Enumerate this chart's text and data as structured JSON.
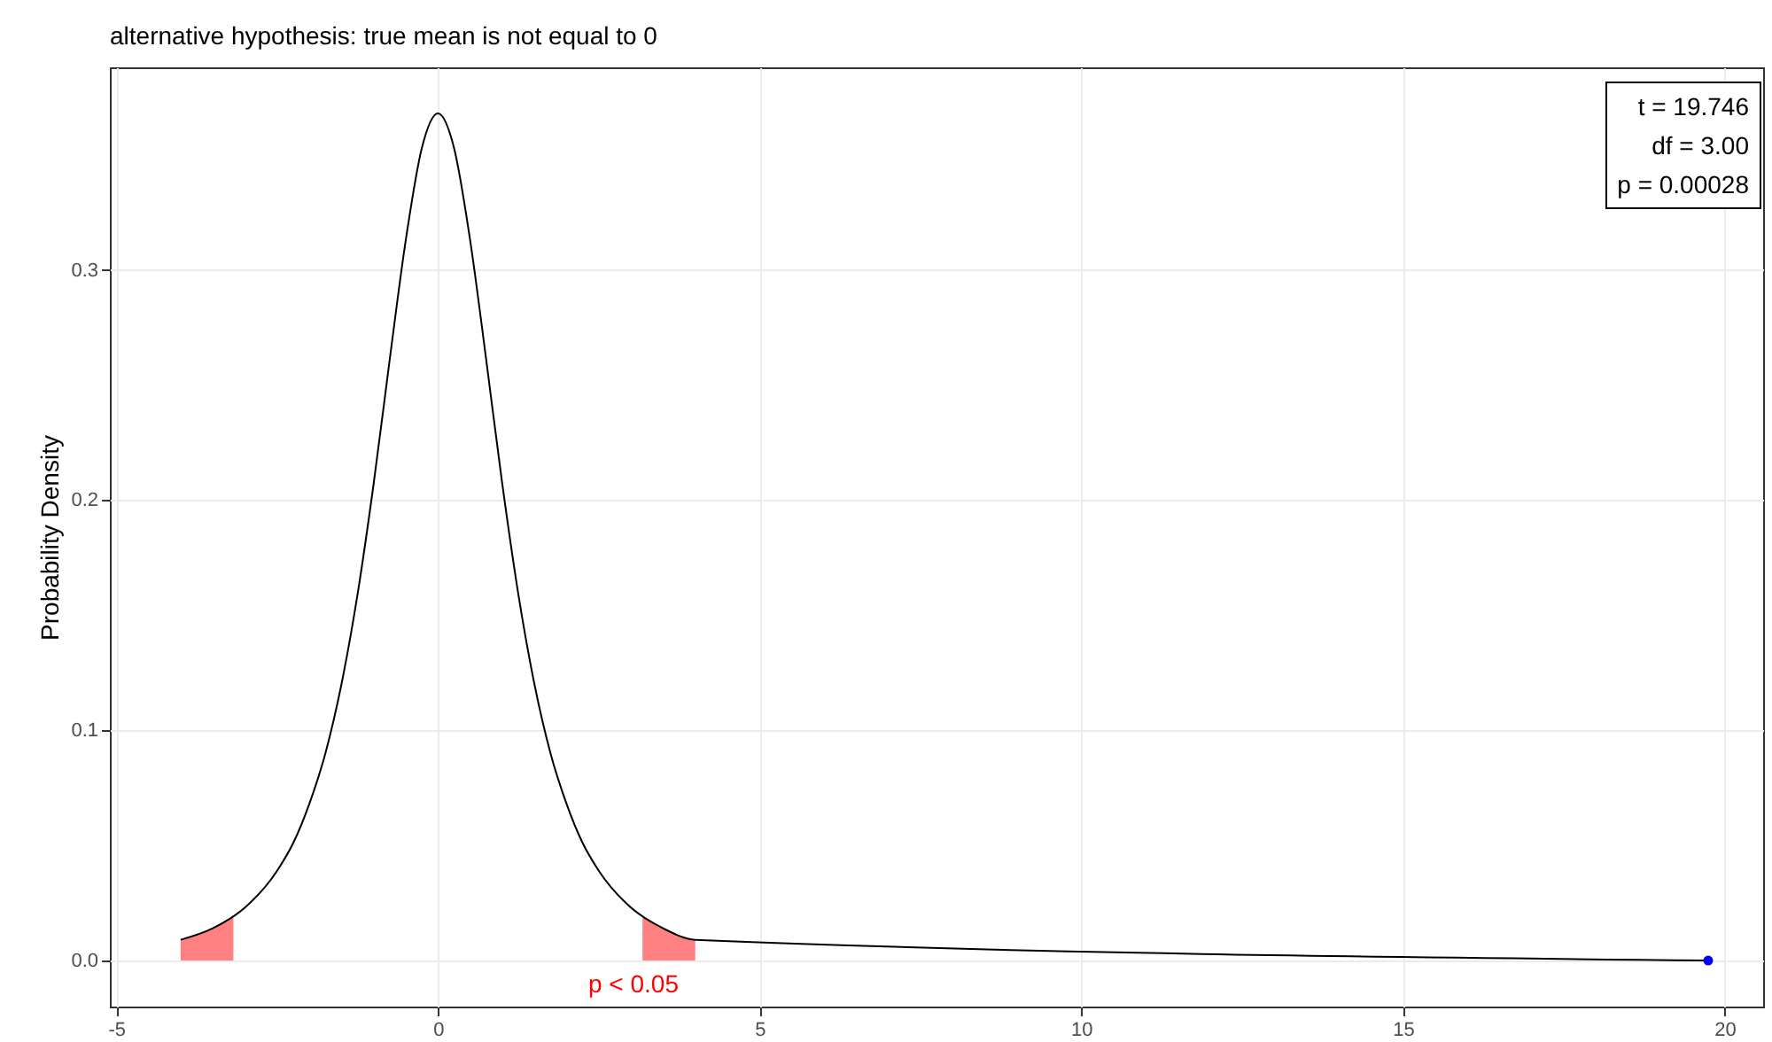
{
  "chart_data": {
    "type": "line",
    "title": "alternative hypothesis: true mean is not equal to 0",
    "ylabel": "Probability Density",
    "xlim": [
      -5.1,
      20.6
    ],
    "xticks": [
      -5,
      0,
      5,
      10,
      15,
      20
    ],
    "ylim": [
      -0.02,
      0.388
    ],
    "yticks": [
      {
        "value": 0,
        "label": "0.0"
      },
      {
        "value": 0.1,
        "label": "0.1"
      },
      {
        "value": 0.2,
        "label": "0.2"
      },
      {
        "value": 0.3,
        "label": "0.3"
      }
    ],
    "grid": true,
    "series": [
      {
        "type": "area",
        "color": "#ff8080",
        "x": [
          -4,
          -3.75,
          -3.5,
          -3.25,
          -3.18
        ],
        "values": [
          0.009,
          0.011,
          0.014,
          0.018,
          0.019
        ]
      },
      {
        "type": "area",
        "color": "#ff8080",
        "x": [
          3.18,
          3.25,
          3.5,
          3.75,
          4
        ],
        "values": [
          0.019,
          0.018,
          0.014,
          0.011,
          0.009
        ]
      },
      {
        "color": "#000000",
        "x": [
          -4,
          -3.5,
          -3,
          -2.5,
          -2.25,
          -2,
          -1.75,
          -1.5,
          -1.25,
          -1,
          -0.75,
          -0.5,
          -0.25,
          0,
          0.25,
          0.5,
          0.75,
          1,
          1.25,
          1.5,
          1.75,
          2,
          2.25,
          2.5,
          3,
          3.5,
          4,
          19.746
        ],
        "values": [
          0.009,
          0.014,
          0.023,
          0.039,
          0.051,
          0.068,
          0.09,
          0.12,
          0.159,
          0.207,
          0.261,
          0.313,
          0.353,
          0.368,
          0.353,
          0.313,
          0.261,
          0.207,
          0.159,
          0.12,
          0.09,
          0.068,
          0.051,
          0.039,
          0.023,
          0.014,
          0.009,
          0
        ]
      },
      {
        "type": "scatter",
        "color": "#0000ff",
        "x": [
          19.746
        ],
        "values": [
          0
        ]
      }
    ],
    "annotations": [
      "t = 19.746",
      "df = 3.00",
      "p = 0.00028",
      "p < 0.05"
    ]
  }
}
